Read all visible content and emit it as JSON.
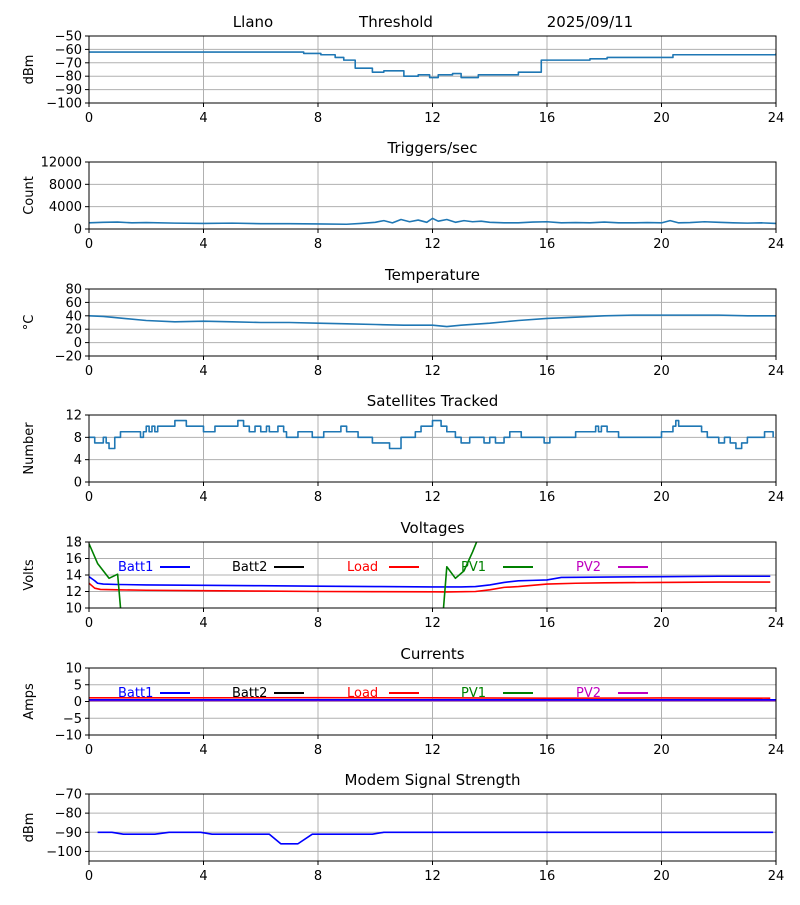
{
  "header": {
    "site": "Llano",
    "mode": "Threshold",
    "date": "2025/09/11"
  },
  "colors": {
    "default_series": "#1f77b4",
    "grid": "#b0b0b0",
    "batt1": "#0000ff",
    "batt2": "#000000",
    "load": "#ff0000",
    "pv1": "#008000",
    "pv2": "#bf00bf"
  },
  "x_ticks": [
    "0",
    "4",
    "8",
    "12",
    "16",
    "20",
    "24"
  ],
  "chart_data": [
    {
      "type": "line",
      "title": "",
      "xlabel": "",
      "ylabel": "dBm",
      "xlim": [
        0,
        24
      ],
      "ylim": [
        -100,
        -50
      ],
      "yticks": [
        -100,
        -90,
        -80,
        -70,
        -60,
        -50
      ],
      "ytick_labels": [
        "−100",
        "−90",
        "−80",
        "−70",
        "−60",
        "−50"
      ],
      "grid": true,
      "series": [
        {
          "color": "default_series",
          "step": true,
          "x": [
            0,
            6.8,
            7.5,
            8.1,
            8.6,
            8.9,
            9.3,
            9.9,
            10.3,
            11.0,
            11.5,
            11.9,
            12.2,
            12.7,
            13.0,
            13.6,
            15.0,
            15.8,
            16.0,
            17.5,
            18.1,
            20.4,
            24
          ],
          "y": [
            -62,
            -62,
            -63,
            -64,
            -66,
            -68,
            -74,
            -77,
            -76,
            -80,
            -79,
            -81,
            -79,
            -78,
            -81,
            -79,
            -77,
            -68,
            -68,
            -67,
            -66,
            -64,
            -63
          ]
        }
      ]
    },
    {
      "type": "line",
      "title": "Triggers/sec",
      "xlabel": "",
      "ylabel": "Count",
      "xlim": [
        0,
        24
      ],
      "ylim": [
        0,
        12000
      ],
      "yticks": [
        0,
        4000,
        8000,
        12000
      ],
      "ytick_labels": [
        "0",
        "4000",
        "8000",
        "12000"
      ],
      "grid": true,
      "series": [
        {
          "color": "default_series",
          "x": [
            0,
            0.5,
            1,
            1.5,
            2,
            3,
            4,
            5,
            6,
            7,
            8,
            9,
            9.5,
            10,
            10.3,
            10.6,
            10.9,
            11.2,
            11.5,
            11.8,
            12.0,
            12.2,
            12.5,
            12.8,
            13.1,
            13.4,
            13.7,
            14.0,
            14.5,
            15,
            15.5,
            16,
            16.5,
            17,
            17.5,
            18,
            18.5,
            19,
            19.5,
            20,
            20.3,
            20.6,
            21,
            21.5,
            22,
            22.5,
            23,
            23.5,
            24
          ],
          "y": [
            1100,
            1200,
            1250,
            1100,
            1150,
            1050,
            1000,
            1050,
            950,
            950,
            900,
            850,
            1000,
            1200,
            1500,
            1100,
            1700,
            1300,
            1600,
            1200,
            1900,
            1400,
            1700,
            1200,
            1500,
            1300,
            1400,
            1200,
            1100,
            1100,
            1250,
            1300,
            1100,
            1150,
            1100,
            1250,
            1100,
            1100,
            1150,
            1100,
            1500,
            1100,
            1150,
            1300,
            1200,
            1100,
            1050,
            1100,
            1000
          ]
        }
      ]
    },
    {
      "type": "line",
      "title": "Temperature",
      "xlabel": "",
      "ylabel": "°C",
      "xlim": [
        0,
        24
      ],
      "ylim": [
        -20,
        80
      ],
      "yticks": [
        -20,
        0,
        20,
        40,
        60,
        80
      ],
      "ytick_labels": [
        "−20",
        "0",
        "20",
        "40",
        "60",
        "80"
      ],
      "grid": true,
      "series": [
        {
          "color": "default_series",
          "x": [
            0,
            0.5,
            1,
            2,
            3,
            4,
            5,
            6,
            7,
            8,
            9,
            10,
            11,
            12,
            12.5,
            13,
            14,
            15,
            16,
            17,
            18,
            19,
            20,
            21,
            22,
            23,
            24
          ],
          "y": [
            40,
            39,
            37,
            33,
            31,
            32,
            31,
            30,
            30,
            29,
            28,
            27,
            26,
            26,
            24,
            26,
            29,
            33,
            36,
            38,
            40,
            41,
            41,
            41,
            41,
            40,
            40
          ]
        }
      ]
    },
    {
      "type": "line",
      "title": "Satellites Tracked",
      "xlabel": "",
      "ylabel": "Number",
      "xlim": [
        0,
        24
      ],
      "ylim": [
        0,
        12
      ],
      "yticks": [
        0,
        4,
        8,
        12
      ],
      "ytick_labels": [
        "0",
        "4",
        "8",
        "12"
      ],
      "grid": true,
      "series": [
        {
          "color": "default_series",
          "step": true,
          "x": [
            0,
            0.2,
            0.4,
            0.5,
            0.6,
            0.7,
            0.9,
            1.1,
            1.7,
            1.8,
            1.9,
            2.0,
            2.1,
            2.2,
            2.3,
            2.4,
            2.9,
            3.0,
            3.4,
            3.8,
            4.0,
            4.4,
            4.8,
            5.2,
            5.4,
            5.6,
            5.8,
            6.0,
            6.2,
            6.3,
            6.6,
            6.8,
            6.9,
            7.3,
            7.6,
            7.8,
            8.2,
            8.5,
            8.8,
            9.0,
            9.4,
            9.7,
            9.9,
            10.2,
            10.5,
            10.9,
            11.4,
            11.6,
            12.0,
            12.3,
            12.5,
            12.8,
            13.0,
            13.3,
            13.5,
            13.8,
            14.0,
            14.2,
            14.5,
            14.7,
            15.1,
            15.5,
            15.9,
            16.1,
            16.5,
            16.8,
            17.0,
            17.5,
            17.7,
            17.8,
            17.9,
            18.1,
            18.5,
            18.9,
            19.4,
            19.6,
            20.0,
            20.4,
            20.5,
            20.6,
            20.8,
            21.4,
            21.6,
            22.0,
            22.2,
            22.4,
            22.6,
            22.8,
            23.0,
            23.6,
            23.9
          ],
          "y": [
            8,
            7,
            7,
            8,
            7,
            6,
            8,
            9,
            9,
            8,
            9,
            10,
            9,
            10,
            9,
            10,
            10,
            11,
            10,
            10,
            9,
            10,
            10,
            11,
            10,
            9,
            10,
            9,
            10,
            9,
            10,
            9,
            8,
            9,
            9,
            8,
            9,
            9,
            10,
            9,
            8,
            8,
            7,
            7,
            6,
            8,
            9,
            10,
            11,
            10,
            9,
            8,
            7,
            8,
            8,
            7,
            8,
            7,
            8,
            9,
            8,
            8,
            7,
            8,
            8,
            8,
            9,
            9,
            10,
            9,
            10,
            9,
            8,
            8,
            8,
            8,
            9,
            10,
            11,
            10,
            10,
            9,
            8,
            7,
            8,
            7,
            6,
            7,
            8,
            9,
            8
          ]
        }
      ]
    },
    {
      "type": "line",
      "title": "Voltages",
      "xlabel": "",
      "ylabel": "Volts",
      "xlim": [
        0,
        24
      ],
      "ylim": [
        10,
        18
      ],
      "yticks": [
        10,
        12,
        14,
        16,
        18
      ],
      "ytick_labels": [
        "10",
        "12",
        "14",
        "16",
        "18"
      ],
      "grid": true,
      "legend": {
        "placement": "top",
        "entries": [
          "Batt1",
          "Batt2",
          "Load",
          "PV1",
          "PV2"
        ]
      },
      "series": [
        {
          "name": "Batt1",
          "color": "batt1",
          "x": [
            0,
            0.2,
            0.3,
            0.5,
            1,
            2,
            4,
            6,
            8,
            10,
            12,
            13,
            13.5,
            14,
            14.5,
            15,
            15.5,
            16,
            16.5,
            18,
            20,
            22,
            23.8
          ],
          "y": [
            13.8,
            13.3,
            13.0,
            12.9,
            12.85,
            12.8,
            12.75,
            12.7,
            12.65,
            12.6,
            12.55,
            12.55,
            12.6,
            12.8,
            13.1,
            13.3,
            13.35,
            13.4,
            13.7,
            13.75,
            13.8,
            13.85,
            13.85
          ]
        },
        {
          "name": "Load",
          "color": "load",
          "x": [
            0,
            0.2,
            0.4,
            1,
            2,
            4,
            6,
            8,
            10,
            12,
            12.5,
            13.5,
            14,
            14.5,
            15,
            16,
            17,
            18,
            20,
            22,
            23.8
          ],
          "y": [
            13.0,
            12.4,
            12.25,
            12.2,
            12.15,
            12.1,
            12.05,
            12.0,
            11.98,
            11.96,
            11.95,
            12.0,
            12.2,
            12.5,
            12.6,
            12.9,
            13.0,
            13.05,
            13.1,
            13.15,
            13.15
          ]
        },
        {
          "name": "PV1",
          "color": "pv1",
          "x": [
            0,
            0.3,
            0.7,
            1.0,
            1.3,
            12.2,
            12.5,
            12.8,
            13.1,
            13.4,
            13.6
          ],
          "y": [
            17.8,
            15.4,
            13.6,
            14.1,
            2,
            2,
            15.0,
            13.6,
            14.5,
            16.8,
            18.5
          ]
        }
      ]
    },
    {
      "type": "line",
      "title": "Currents",
      "xlabel": "",
      "ylabel": "Amps",
      "xlim": [
        0,
        24
      ],
      "ylim": [
        -10,
        10
      ],
      "yticks": [
        -10,
        -5,
        0,
        5,
        10
      ],
      "ytick_labels": [
        "−10",
        "−5",
        "0",
        "5",
        "10"
      ],
      "grid": true,
      "legend": {
        "placement": "top",
        "entries": [
          "Batt1",
          "Batt2",
          "Load",
          "PV1",
          "PV2"
        ]
      },
      "series": [
        {
          "name": "PV2",
          "color": "pv2",
          "x": [
            0,
            24
          ],
          "y": [
            0.3,
            0.3
          ]
        },
        {
          "name": "Batt1",
          "color": "batt1",
          "x": [
            0,
            24
          ],
          "y": [
            0.5,
            0.5
          ]
        },
        {
          "name": "Load",
          "color": "load",
          "x": [
            0,
            4,
            8,
            12,
            16,
            20,
            23.8
          ],
          "y": [
            1.1,
            1.1,
            1.15,
            1.1,
            1.0,
            1.05,
            1.0
          ]
        }
      ]
    },
    {
      "type": "line",
      "title": "Modem Signal Strength",
      "xlabel": "",
      "ylabel": "dBm",
      "xlim": [
        0,
        24
      ],
      "ylim": [
        -105,
        -70
      ],
      "yticks": [
        -100,
        -90,
        -80,
        -70
      ],
      "ytick_labels": [
        "−100",
        "−90",
        "−80",
        "−70"
      ],
      "grid": true,
      "series": [
        {
          "name": "Modem",
          "color": "batt1",
          "x": [
            0.3,
            0.8,
            1.2,
            2.3,
            2.8,
            3.9,
            4.3,
            6.3,
            6.7,
            7.3,
            7.8,
            9.9,
            10.3,
            23.9
          ],
          "y": [
            -90,
            -90,
            -91,
            -91,
            -90,
            -90,
            -91,
            -91,
            -96,
            -96,
            -91,
            -91,
            -90,
            -90
          ]
        }
      ]
    }
  ]
}
